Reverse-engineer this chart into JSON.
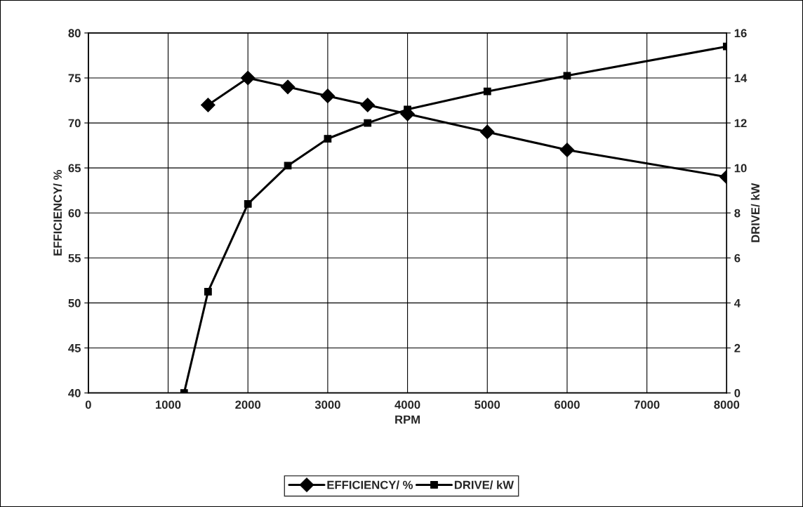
{
  "chart_data": {
    "type": "line",
    "xlabel": "RPM",
    "ylabel": "EFFICIENCY/ %",
    "y2label": "DRIVE/ kW",
    "xlim": [
      0,
      8000
    ],
    "xticks": [
      0,
      1000,
      2000,
      3000,
      4000,
      5000,
      6000,
      7000,
      8000
    ],
    "ylim": [
      40,
      80
    ],
    "yticks": [
      40,
      45,
      50,
      55,
      60,
      65,
      70,
      75,
      80
    ],
    "y2lim": [
      0,
      16
    ],
    "y2ticks": [
      0,
      2,
      4,
      6,
      8,
      10,
      12,
      14,
      16
    ],
    "grid": true,
    "legend": "bottom",
    "line_style": "solid",
    "series": [
      {
        "name": "EFFICIENCY/ %",
        "color": "#000000",
        "marker": "diamond",
        "x": [
          1500,
          2000,
          2500,
          3000,
          3500,
          4000,
          5000,
          6000,
          8000
        ],
        "values": [
          72,
          75,
          74,
          73,
          72,
          71,
          69,
          67,
          64
        ]
      },
      {
        "name": "DRIVE/ kW",
        "color": "#000000",
        "marker": "square",
        "axis": "y2",
        "x": [
          1200,
          1500,
          2000,
          2500,
          3000,
          3500,
          4000,
          5000,
          6000,
          8000
        ],
        "values": [
          0,
          4.5,
          8.4,
          10.1,
          11.3,
          12.0,
          12.6,
          13.4,
          14.1,
          15.4
        ]
      }
    ]
  }
}
